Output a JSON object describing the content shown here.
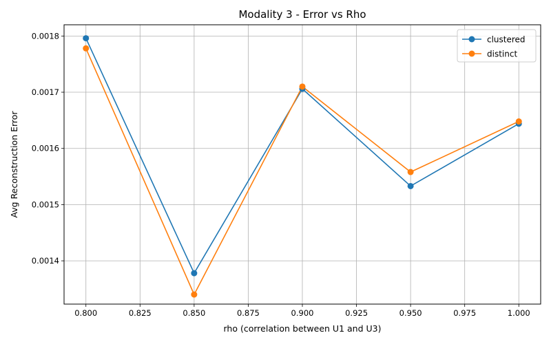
{
  "chart_data": {
    "type": "line",
    "title": "Modality 3 - Error vs Rho",
    "xlabel": "rho (correlation between U1 and U3)",
    "ylabel": "Avg Reconstruction Error",
    "x": [
      0.8,
      0.85,
      0.9,
      0.95,
      1.0
    ],
    "xlim": [
      0.7899,
      1.0101
    ],
    "ylim": [
      0.001323,
      0.00182
    ],
    "xticks": [
      0.8,
      0.825,
      0.85,
      0.875,
      0.9,
      0.925,
      0.95,
      0.975,
      1.0
    ],
    "xtick_labels": [
      "0.800",
      "0.825",
      "0.850",
      "0.875",
      "0.900",
      "0.925",
      "0.950",
      "0.975",
      "1.000"
    ],
    "yticks": [
      0.0014,
      0.0015,
      0.0016,
      0.0017,
      0.0018
    ],
    "ytick_labels": [
      "0.0014",
      "0.0015",
      "0.0016",
      "0.0017",
      "0.0018"
    ],
    "grid": true,
    "legend_position": "top-right",
    "series": [
      {
        "name": "clustered",
        "color": "#1f77b4",
        "values": [
          0.001796,
          0.001378,
          0.001706,
          0.001533,
          0.001644
        ]
      },
      {
        "name": "distinct",
        "color": "#ff7f0e",
        "values": [
          0.001778,
          0.00134,
          0.00171,
          0.001558,
          0.001648
        ]
      }
    ]
  }
}
